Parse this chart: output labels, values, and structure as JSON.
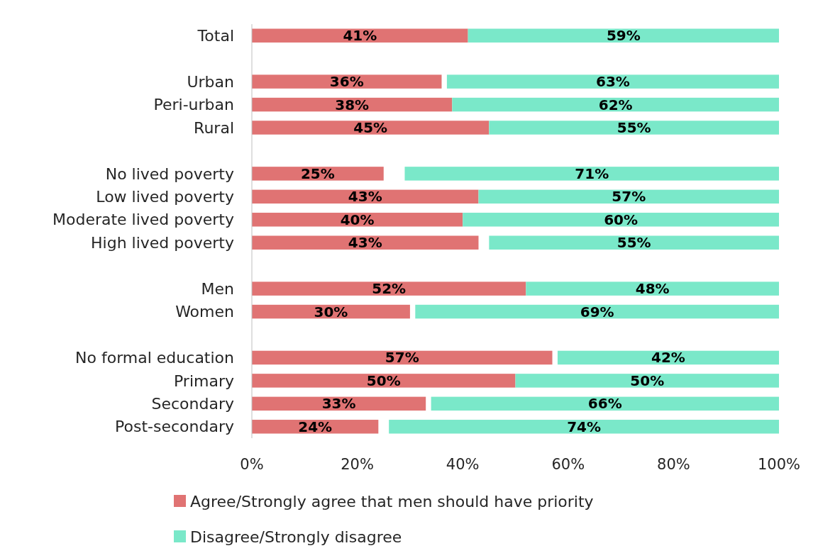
{
  "chart_data": {
    "type": "bar",
    "orientation": "horizontal",
    "categories": [
      "Total",
      null,
      "Urban",
      "Peri-urban",
      "Rural",
      null,
      "No lived poverty",
      "Low lived poverty",
      "Moderate lived poverty",
      "High lived poverty",
      null,
      "Men",
      "Women",
      null,
      "No formal education",
      "Primary",
      "Secondary",
      "Post-secondary"
    ],
    "series": [
      {
        "name": "Agree/Strongly agree that men should have priority",
        "color": "#e07373",
        "values": [
          41,
          null,
          36,
          38,
          45,
          null,
          25,
          43,
          40,
          43,
          null,
          52,
          30,
          null,
          57,
          50,
          33,
          24
        ],
        "base": [
          0,
          null,
          0,
          0,
          0,
          null,
          0,
          0,
          0,
          0,
          null,
          0,
          0,
          null,
          0,
          0,
          0,
          0
        ],
        "value_labels": [
          "41%",
          null,
          "36%",
          "38%",
          "45%",
          null,
          "25%",
          "43%",
          "40%",
          "43%",
          null,
          "52%",
          "30%",
          null,
          "57%",
          "50%",
          "33%",
          "24%"
        ]
      },
      {
        "name": "Disagree/Strongly disagree",
        "color": "#7ae8c9",
        "values": [
          59,
          null,
          63,
          62,
          55,
          null,
          71,
          57,
          60,
          55,
          null,
          48,
          69,
          null,
          42,
          50,
          66,
          74
        ],
        "base": [
          41,
          null,
          37,
          38,
          45,
          null,
          29,
          43,
          40,
          45,
          null,
          52,
          31,
          null,
          58,
          50,
          34,
          26
        ],
        "value_labels": [
          "59%",
          null,
          "63%",
          "62%",
          "55%",
          null,
          "71%",
          "57%",
          "60%",
          "55%",
          null,
          "48%",
          "69%",
          null,
          "42%",
          "50%",
          "66%",
          "74%"
        ]
      }
    ],
    "xlim": [
      0,
      100
    ],
    "xticks": [
      {
        "value": 0,
        "label": "0%"
      },
      {
        "value": 20,
        "label": "20%"
      },
      {
        "value": 40,
        "label": "40%"
      },
      {
        "value": 60,
        "label": "60%"
      },
      {
        "value": 80,
        "label": "80%"
      },
      {
        "value": 100,
        "label": "100%"
      }
    ],
    "grid": false,
    "legend": "bottom"
  }
}
